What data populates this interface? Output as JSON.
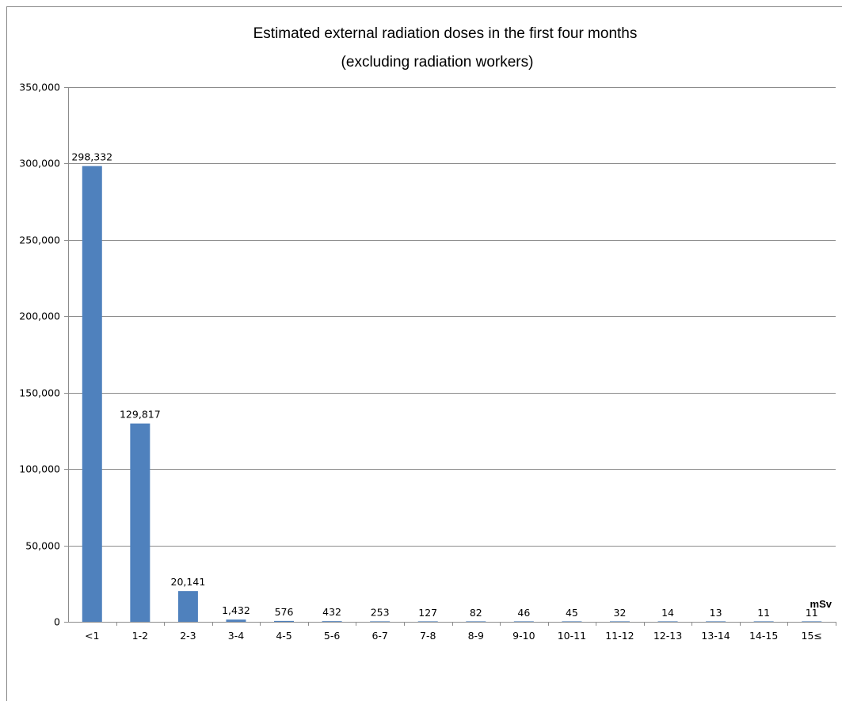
{
  "chart_data": {
    "type": "bar",
    "title": "Estimated external radiation doses in the first four months",
    "subtitle": "(excluding radiation workers)",
    "xlabel": "mSv",
    "ylabel": "",
    "categories": [
      "<1",
      "1-2",
      "2-3",
      "3-4",
      "4-5",
      "5-6",
      "6-7",
      "7-8",
      "8-9",
      "9-10",
      "10-11",
      "11-12",
      "12-13",
      "13-14",
      "14-15",
      "15≤"
    ],
    "values": [
      298332,
      129817,
      20141,
      1432,
      576,
      432,
      253,
      127,
      82,
      46,
      45,
      32,
      14,
      13,
      11,
      11
    ],
    "data_labels": [
      "298,332",
      "129,817",
      "20,141",
      "1,432",
      "576",
      "432",
      "253",
      "127",
      "82",
      "46",
      "45",
      "32",
      "14",
      "13",
      "11",
      "11"
    ],
    "ylim": [
      0,
      350000
    ],
    "yticks": [
      0,
      50000,
      100000,
      150000,
      200000,
      250000,
      300000,
      350000
    ],
    "ytick_labels": [
      "0",
      "50,000",
      "100,000",
      "150,000",
      "200,000",
      "250,000",
      "300,000",
      "350,000"
    ],
    "grid": true,
    "legend": "none",
    "colors": {
      "bar": "#4f81bd",
      "grid": "#8c8c8c",
      "axis": "#8c8c8c"
    }
  }
}
